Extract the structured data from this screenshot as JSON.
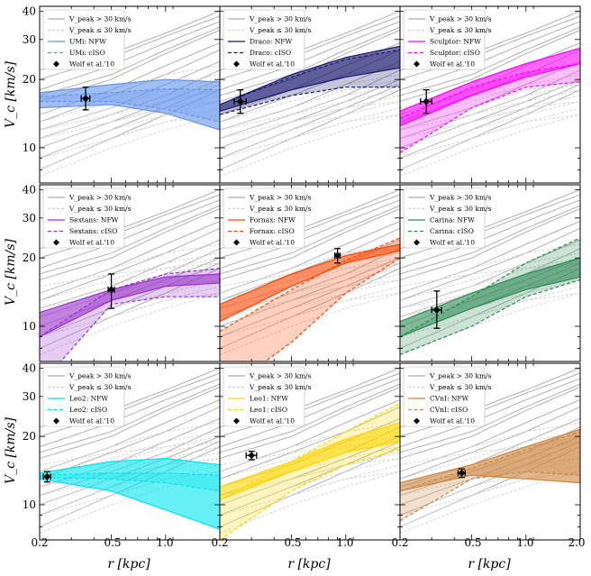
{
  "figure": {
    "x_axis_label": "r [kpc]",
    "y_axis_label": "V_c [km/s]",
    "x_tick_labels": [
      "0.2",
      "0.5",
      "1.0",
      "2.0"
    ],
    "y_tick_labels": [
      "10",
      "20",
      "30",
      "40"
    ],
    "legend_common": {
      "gray_solid": "V_peak > 30 km/s",
      "gray_dashed": "V_peak ≤ 30 km/s",
      "marker": "Wolf et al.'10"
    }
  },
  "chart_data": [
    {
      "type": "line",
      "name": "UMi",
      "color": "#6495ED",
      "legend": [
        "UMi: NFW",
        "UMi: cISO"
      ],
      "xlim": [
        0.2,
        2.0
      ],
      "ylim": [
        7,
        42
      ],
      "xscale": "log",
      "yscale": "log",
      "wolf": {
        "r": 0.36,
        "v": 16.5,
        "r_err": 0.02,
        "v_err_lo": 1.8,
        "v_err_hi": 2.0
      },
      "nfw_band": {
        "r": [
          0.2,
          0.5,
          1.0,
          2.0
        ],
        "low": [
          15.0,
          15.5,
          14.2,
          12.0
        ],
        "high": [
          17.5,
          19.0,
          20.0,
          19.5
        ]
      },
      "ciso_band": {
        "r": [
          0.2,
          0.5,
          1.0,
          2.0
        ],
        "low": [
          16.0,
          16.0,
          14.8,
          13.0
        ],
        "high": [
          16.8,
          17.5,
          18.2,
          18.0
        ]
      }
    },
    {
      "type": "line",
      "name": "Draco",
      "color": "#191970",
      "legend": [
        "Draco: NFW",
        "Draco: cISO"
      ],
      "xlim": [
        0.2,
        2.0
      ],
      "ylim": [
        7,
        42
      ],
      "xscale": "log",
      "yscale": "log",
      "wolf": {
        "r": 0.26,
        "v": 16.0,
        "r_err": 0.02,
        "v_err_lo": 1.8,
        "v_err_hi": 2.0
      },
      "nfw_band": {
        "r": [
          0.2,
          0.5,
          1.0,
          2.0
        ],
        "low": [
          14.5,
          18.0,
          20.5,
          22.5
        ],
        "high": [
          15.5,
          21.0,
          25.0,
          28.0
        ]
      },
      "ciso_band": {
        "r": [
          0.2,
          0.5,
          1.0,
          2.0
        ],
        "low": [
          14.0,
          17.0,
          18.5,
          18.5
        ],
        "high": [
          15.5,
          20.5,
          24.5,
          27.0
        ]
      }
    },
    {
      "type": "line",
      "name": "Sculptor",
      "color": "#FF00FF",
      "legend": [
        "Sculptor: NFW",
        "Sculptor: cISO"
      ],
      "xlim": [
        0.2,
        2.0
      ],
      "ylim": [
        7,
        42
      ],
      "xscale": "log",
      "yscale": "log",
      "wolf": {
        "r": 0.28,
        "v": 16.0,
        "r_err": 0.02,
        "v_err_lo": 1.8,
        "v_err_hi": 2.0
      },
      "nfw_band": {
        "r": [
          0.2,
          0.5,
          1.0,
          2.0
        ],
        "low": [
          12.5,
          17.0,
          20.5,
          23.5
        ],
        "high": [
          14.5,
          19.5,
          23.5,
          27.5
        ]
      },
      "ciso_band": {
        "r": [
          0.2,
          0.5,
          1.0,
          2.0
        ],
        "low": [
          9.5,
          15.0,
          18.5,
          19.5
        ],
        "high": [
          13.5,
          18.5,
          21.5,
          23.5
        ]
      }
    },
    {
      "type": "line",
      "name": "Sextans",
      "color": "#9932CC",
      "legend": [
        "Sextans: NFW",
        "Sextans: cISO"
      ],
      "xlim": [
        0.2,
        2.0
      ],
      "ylim": [
        7,
        42
      ],
      "xscale": "log",
      "yscale": "log",
      "wolf": {
        "r": 0.5,
        "v": 14.5,
        "r_err": 0.02,
        "v_err_lo": 2.5,
        "v_err_hi": 2.5
      },
      "nfw_band": {
        "r": [
          0.2,
          0.5,
          1.0,
          2.0
        ],
        "low": [
          9.0,
          13.0,
          15.0,
          15.5
        ],
        "high": [
          11.5,
          14.5,
          16.5,
          17.0
        ]
      },
      "ciso_band": {
        "r": [
          0.2,
          0.5,
          1.0,
          2.0
        ],
        "low": [
          5.5,
          12.5,
          13.5,
          13.5
        ],
        "high": [
          9.0,
          14.5,
          17.0,
          18.0
        ]
      }
    },
    {
      "type": "line",
      "name": "Fornax",
      "color": "#FF4500",
      "legend": [
        "Fornax: NFW",
        "Fornax: cISO"
      ],
      "xlim": [
        0.2,
        2.0
      ],
      "ylim": [
        7,
        42
      ],
      "xscale": "log",
      "yscale": "log",
      "wolf": {
        "r": 0.9,
        "v": 20.5,
        "r_err": 0.03,
        "v_err_lo": 1.5,
        "v_err_hi": 1.5
      },
      "nfw_band": {
        "r": [
          0.2,
          0.5,
          1.0,
          2.0
        ],
        "low": [
          10.5,
          15.0,
          19.0,
          21.5
        ],
        "high": [
          12.5,
          17.0,
          20.5,
          23.0
        ]
      },
      "ciso_band": {
        "r": [
          0.2,
          0.5,
          1.0,
          2.0
        ],
        "low": [
          5.0,
          8.5,
          14.0,
          20.0
        ],
        "high": [
          9.5,
          14.5,
          19.5,
          24.5
        ]
      }
    },
    {
      "type": "line",
      "name": "Carina",
      "color": "#2E8B57",
      "legend": [
        "Carina: NFW",
        "Carina: cISO"
      ],
      "xlim": [
        0.2,
        2.0
      ],
      "ylim": [
        7,
        42
      ],
      "xscale": "log",
      "yscale": "log",
      "wolf": {
        "r": 0.32,
        "v": 11.8,
        "r_err": 0.02,
        "v_err_lo": 2.0,
        "v_err_hi": 2.5
      },
      "nfw_band": {
        "r": [
          0.2,
          0.5,
          1.0,
          2.0
        ],
        "low": [
          9.0,
          12.0,
          14.5,
          16.5
        ],
        "high": [
          10.5,
          14.0,
          17.0,
          20.0
        ]
      },
      "ciso_band": {
        "r": [
          0.2,
          0.5,
          1.0,
          2.0
        ],
        "low": [
          7.5,
          10.0,
          13.5,
          16.0
        ],
        "high": [
          9.0,
          13.5,
          19.0,
          24.5
        ]
      }
    },
    {
      "type": "line",
      "name": "Leo2",
      "color": "#00E5EE",
      "legend": [
        "Leo2: NFW",
        "Leo2: cISO"
      ],
      "xlim": [
        0.2,
        2.0
      ],
      "ylim": [
        7,
        42
      ],
      "xscale": "log",
      "yscale": "log",
      "wolf": {
        "r": 0.22,
        "v": 13.3,
        "r_err": 0.01,
        "v_err_lo": 0.7,
        "v_err_hi": 0.7
      },
      "nfw_band": {
        "r": [
          0.2,
          0.5,
          1.0,
          2.0
        ],
        "low": [
          13.0,
          11.5,
          9.5,
          7.8
        ],
        "high": [
          13.8,
          15.5,
          16.0,
          15.0
        ]
      },
      "ciso_band": {
        "r": [
          0.2,
          0.5,
          1.0,
          2.0
        ],
        "low": [
          13.2,
          13.0,
          12.5,
          11.5
        ],
        "high": [
          13.5,
          13.8,
          13.8,
          13.5
        ]
      }
    },
    {
      "type": "line",
      "name": "Leo1",
      "color": "#FFD700",
      "legend": [
        "Leo1: NFW",
        "Leo1: cISO"
      ],
      "xlim": [
        0.2,
        2.0
      ],
      "ylim": [
        7,
        42
      ],
      "xscale": "log",
      "yscale": "log",
      "wolf": {
        "r": 0.3,
        "v": 16.5,
        "r_err": 0.02,
        "v_err_lo": 0.7,
        "v_err_hi": 0.7
      },
      "nfw_band": {
        "r": [
          0.2,
          0.5,
          1.0,
          2.0
        ],
        "low": [
          10.5,
          14.0,
          17.0,
          19.0
        ],
        "high": [
          12.0,
          15.5,
          19.5,
          23.0
        ]
      },
      "ciso_band": {
        "r": [
          0.2,
          0.5,
          1.0,
          2.0
        ],
        "low": [
          7.0,
          11.5,
          15.0,
          17.5
        ],
        "high": [
          10.5,
          15.5,
          21.0,
          28.0
        ]
      }
    },
    {
      "type": "line",
      "name": "CVnI",
      "color": "#CD853F",
      "legend": [
        "CVnI: NFW",
        "CVnI: cISO"
      ],
      "xlim": [
        0.2,
        2.0
      ],
      "ylim": [
        7,
        42
      ],
      "xscale": "log",
      "yscale": "log",
      "wolf": {
        "r": 0.44,
        "v": 13.8,
        "r_err": 0.02,
        "v_err_lo": 0.6,
        "v_err_hi": 0.6
      },
      "nfw_band": {
        "r": [
          0.2,
          0.5,
          1.0,
          2.0
        ],
        "low": [
          11.5,
          13.5,
          13.0,
          12.5
        ],
        "high": [
          12.5,
          15.0,
          18.0,
          21.5
        ]
      },
      "ciso_band": {
        "r": [
          0.2,
          0.5,
          1.0,
          2.0
        ],
        "low": [
          8.5,
          13.0,
          14.0,
          13.5
        ],
        "high": [
          11.5,
          14.5,
          17.5,
          21.0
        ]
      }
    }
  ],
  "gray_curves": {
    "bright": [
      [
        22,
        26,
        32,
        40
      ],
      [
        18,
        23,
        29,
        36
      ],
      [
        16,
        20,
        26,
        33
      ],
      [
        14,
        18,
        23,
        29
      ],
      [
        13,
        17,
        21,
        27
      ],
      [
        12,
        15,
        19,
        24
      ],
      [
        11,
        14,
        17,
        22
      ],
      [
        10,
        13,
        16,
        20
      ],
      [
        9,
        12,
        15,
        19
      ],
      [
        8,
        11,
        14,
        18
      ],
      [
        20,
        25,
        31,
        38
      ],
      [
        17,
        21,
        27,
        34
      ]
    ],
    "faint": [
      [
        14,
        18,
        21,
        23
      ],
      [
        12,
        15,
        18,
        20
      ],
      [
        11,
        14,
        16,
        18
      ],
      [
        10,
        13,
        15,
        17
      ],
      [
        9,
        12,
        14,
        16
      ],
      [
        8,
        11,
        13,
        15
      ],
      [
        7.5,
        10,
        12,
        14
      ],
      [
        13,
        16,
        19,
        21
      ],
      [
        12,
        14,
        17,
        19
      ],
      [
        15,
        17,
        18,
        19
      ],
      [
        11,
        13,
        15,
        16
      ],
      [
        9,
        11,
        13,
        14
      ]
    ]
  }
}
